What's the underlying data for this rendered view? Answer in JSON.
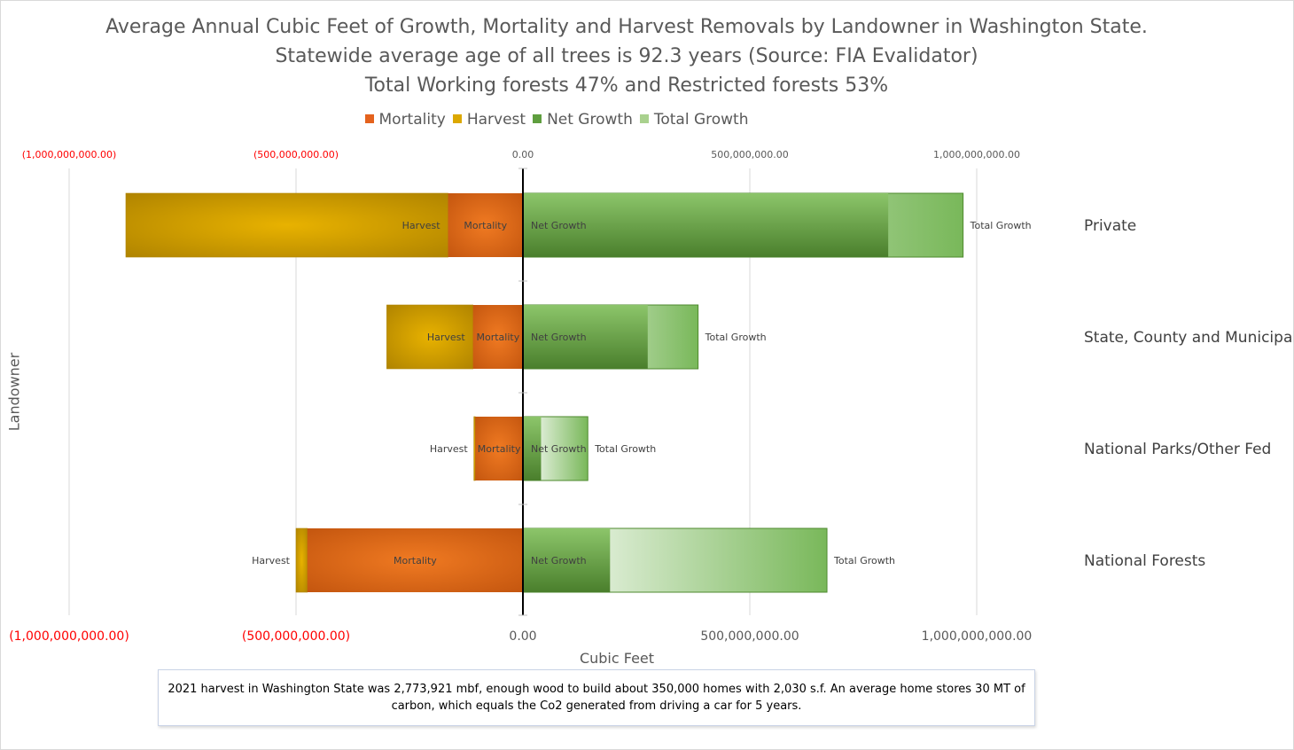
{
  "colors": {
    "mortality": "#e4621d",
    "harvest": "#dca800",
    "net_growth": "#5f9e3f",
    "total_growth": "#a9d18e",
    "grid": "#d9d9d9",
    "neg_tick": "#ff0000",
    "pos_tick": "#595959"
  },
  "legend": {
    "items": [
      {
        "name": "Mortality",
        "color": "#e4621d"
      },
      {
        "name": "Harvest",
        "color": "#dca800"
      },
      {
        "name": "Net Growth",
        "color": "#5f9e3f"
      },
      {
        "name": "Total Growth",
        "color": "#a9d18e"
      }
    ]
  },
  "note": {
    "text": "2021 harvest in Washington State was 2,773,921 mbf, enough wood to build about 350,000 homes with 2,030 s.f. An average home stores 30 MT of carbon, which equals the Co2 generated from driving a car for 5 years."
  },
  "chart_data": {
    "type": "bar",
    "orientation": "horizontal",
    "title": [
      "Average Annual Cubic Feet of Growth, Mortality and Harvest Removals by Landowner in Washington State.",
      "Statewide average age of all trees is 92.3 years (Source: FIA Evalidator)",
      "Total Working forests 47% and Restricted forests 53%"
    ],
    "xlabel": "Cubic  Feet",
    "ylabel": "Landowner",
    "xlim": [
      -1000000000,
      1000000000
    ],
    "ticks": [
      {
        "value": -1000000000,
        "label": "(1,000,000,000.00)"
      },
      {
        "value": -500000000,
        "label": "(500,000,000.00)"
      },
      {
        "value": 0,
        "label": "0.00"
      },
      {
        "value": 500000000,
        "label": "500,000,000.00"
      },
      {
        "value": 1000000000,
        "label": "1,000,000,000.00"
      }
    ],
    "categories": [
      "Private",
      "State, County and Municipal",
      "National Parks/Other Fed",
      "National Forests"
    ],
    "series": [
      {
        "name": "Mortality",
        "values": [
          -165000000,
          -110000000,
          -105000000,
          -475000000
        ]
      },
      {
        "name": "Harvest",
        "values": [
          -710000000,
          -190000000,
          -3000000,
          -25000000
        ]
      },
      {
        "name": "Net Growth",
        "values": [
          805000000,
          275000000,
          40000000,
          192000000
        ]
      },
      {
        "name": "Total Growth",
        "values": [
          970000000,
          386000000,
          143000000,
          670000000
        ]
      }
    ],
    "legend_position": "top",
    "grid": true
  }
}
